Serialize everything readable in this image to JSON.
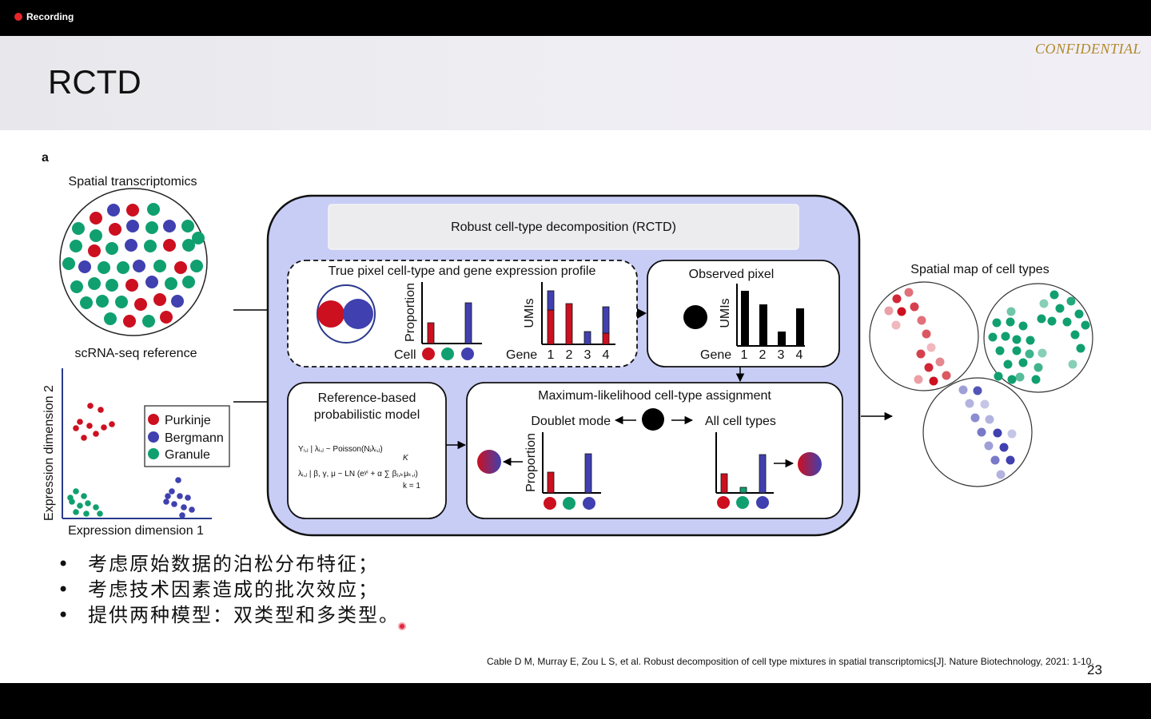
{
  "recording": {
    "label": "Recording"
  },
  "slide": {
    "title": "RCTD",
    "confidential": "CONFIDENTIAL",
    "page_number": "23",
    "citation": "Cable D M, Murray E, Zou L S, et al. Robust decomposition of cell type mixtures in spatial transcriptomics[J]. Nature Biotechnology, 2021: 1-10."
  },
  "figure": {
    "panel_label": "a",
    "spatial_transcriptomics": "Spatial transcriptomics",
    "scrna_reference": "scRNA-seq reference",
    "y_axis": "Expression dimension 2",
    "x_axis": "Expression dimension 1",
    "legend": [
      "Purkinje",
      "Bergmann",
      "Granule"
    ],
    "rctd_title": "Robust cell-type decomposition (RCTD)",
    "true_pixel": "True pixel cell-type and gene expression profile",
    "proportion": "Proportion",
    "umis": "UMIs",
    "cell": "Cell",
    "gene": "Gene",
    "gene_ticks": [
      "1",
      "2",
      "3",
      "4"
    ],
    "observed_pixel": "Observed pixel",
    "ref_model_line1": "Reference-based",
    "ref_model_line2": "probabilistic model",
    "formula1": "Yᵢ,ⱼ | λᵢ,ⱼ ~ Poisson(Nⱼλᵢ,ⱼ)",
    "formula2": "λᵢ,ⱼ | β, γ, μ ~ LN (eʸⁱ + α ∑ βⱼ,ₖμₖ,ᵢ)",
    "sum_top": "K",
    "sum_bottom": "k = 1",
    "mle_title": "Maximum-likelihood cell-type assignment",
    "doublet_mode": "Doublet mode",
    "all_cell_types": "All cell types",
    "spatial_map": "Spatial map of cell types"
  },
  "colors": {
    "purkinje": "#cc1020",
    "bergmann": "#4040b0",
    "granule": "#10a070",
    "panel_fill": "#c8cdf6",
    "accent_gold": "#b08a2a"
  },
  "bullets": [
    "考虑原始数据的泊松分布特征；",
    "考虑技术因素造成的批次效应；",
    "提供两种模型：双类型和多类型。"
  ]
}
